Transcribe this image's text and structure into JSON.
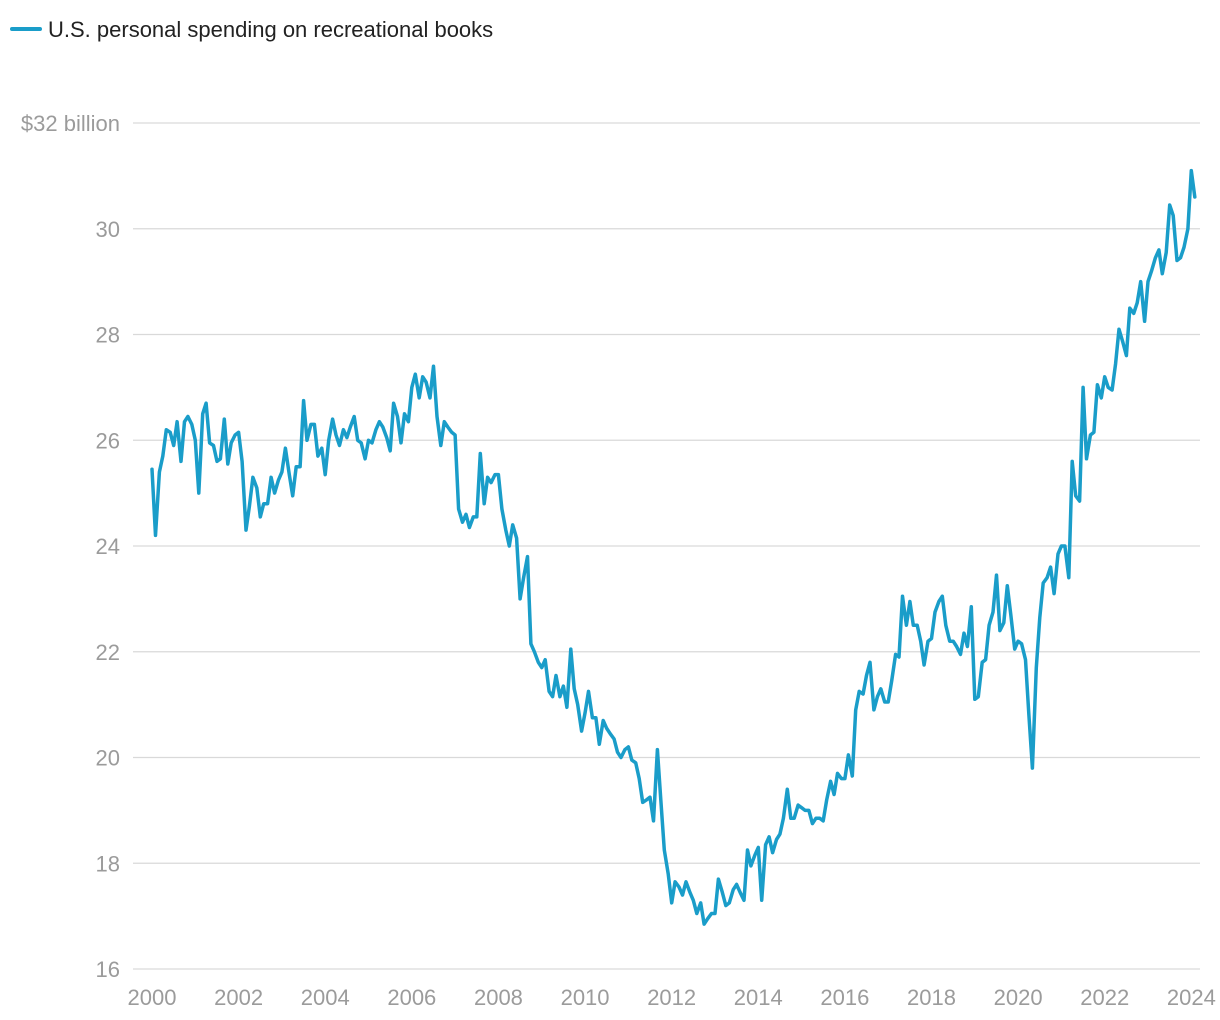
{
  "chart_data": {
    "type": "line",
    "title": "",
    "xlabel": "",
    "ylabel": "",
    "legend": {
      "position": "top-left",
      "entries": [
        "U.S. personal spending on recreational books"
      ]
    },
    "grid": true,
    "xlim": [
      2000,
      2024.2
    ],
    "ylim": [
      16,
      32
    ],
    "x_ticks": [
      2000,
      2002,
      2004,
      2006,
      2008,
      2010,
      2012,
      2014,
      2016,
      2018,
      2020,
      2022,
      2024
    ],
    "x_tick_labels": [
      "2000",
      "2002",
      "2004",
      "2006",
      "2008",
      "2010",
      "2012",
      "2014",
      "2016",
      "2018",
      "2020",
      "2022",
      "2024"
    ],
    "y_ticks": [
      16,
      18,
      20,
      22,
      24,
      26,
      28,
      30,
      32
    ],
    "y_tick_labels": [
      "16",
      "18",
      "20",
      "22",
      "24",
      "26",
      "28",
      "30",
      "$32 billion"
    ],
    "series": [
      {
        "name": "U.S. personal spending on recreational books",
        "color": "#1a9dc9",
        "points": [
          [
            2000.0,
            25.45
          ],
          [
            2000.08,
            24.2
          ],
          [
            2000.17,
            25.4
          ],
          [
            2000.25,
            25.7
          ],
          [
            2000.33,
            26.2
          ],
          [
            2000.42,
            26.15
          ],
          [
            2000.5,
            25.9
          ],
          [
            2000.58,
            26.35
          ],
          [
            2000.67,
            25.6
          ],
          [
            2000.75,
            26.35
          ],
          [
            2000.83,
            26.45
          ],
          [
            2000.92,
            26.3
          ],
          [
            2001.0,
            26.0
          ],
          [
            2001.08,
            25.0
          ],
          [
            2001.17,
            26.5
          ],
          [
            2001.25,
            26.7
          ],
          [
            2001.33,
            25.95
          ],
          [
            2001.42,
            25.9
          ],
          [
            2001.5,
            25.6
          ],
          [
            2001.58,
            25.65
          ],
          [
            2001.67,
            26.4
          ],
          [
            2001.75,
            25.55
          ],
          [
            2001.83,
            25.95
          ],
          [
            2001.92,
            26.1
          ],
          [
            2002.0,
            26.15
          ],
          [
            2002.08,
            25.6
          ],
          [
            2002.17,
            24.3
          ],
          [
            2002.25,
            24.75
          ],
          [
            2002.33,
            25.3
          ],
          [
            2002.42,
            25.1
          ],
          [
            2002.5,
            24.55
          ],
          [
            2002.58,
            24.8
          ],
          [
            2002.67,
            24.8
          ],
          [
            2002.75,
            25.3
          ],
          [
            2002.83,
            25.0
          ],
          [
            2002.92,
            25.25
          ],
          [
            2003.0,
            25.4
          ],
          [
            2003.08,
            25.85
          ],
          [
            2003.17,
            25.35
          ],
          [
            2003.25,
            24.95
          ],
          [
            2003.33,
            25.5
          ],
          [
            2003.42,
            25.5
          ],
          [
            2003.5,
            26.75
          ],
          [
            2003.58,
            26.0
          ],
          [
            2003.67,
            26.3
          ],
          [
            2003.75,
            26.3
          ],
          [
            2003.83,
            25.7
          ],
          [
            2003.92,
            25.85
          ],
          [
            2004.0,
            25.35
          ],
          [
            2004.08,
            26.0
          ],
          [
            2004.17,
            26.4
          ],
          [
            2004.25,
            26.1
          ],
          [
            2004.33,
            25.9
          ],
          [
            2004.42,
            26.2
          ],
          [
            2004.5,
            26.05
          ],
          [
            2004.58,
            26.25
          ],
          [
            2004.67,
            26.45
          ],
          [
            2004.75,
            26.0
          ],
          [
            2004.83,
            25.95
          ],
          [
            2004.92,
            25.65
          ],
          [
            2005.0,
            26.0
          ],
          [
            2005.08,
            25.95
          ],
          [
            2005.17,
            26.2
          ],
          [
            2005.25,
            26.35
          ],
          [
            2005.33,
            26.25
          ],
          [
            2005.42,
            26.05
          ],
          [
            2005.5,
            25.8
          ],
          [
            2005.58,
            26.7
          ],
          [
            2005.67,
            26.45
          ],
          [
            2005.75,
            25.95
          ],
          [
            2005.83,
            26.5
          ],
          [
            2005.92,
            26.35
          ],
          [
            2006.0,
            27.0
          ],
          [
            2006.08,
            27.25
          ],
          [
            2006.17,
            26.8
          ],
          [
            2006.25,
            27.2
          ],
          [
            2006.33,
            27.1
          ],
          [
            2006.42,
            26.8
          ],
          [
            2006.5,
            27.4
          ],
          [
            2006.58,
            26.45
          ],
          [
            2006.67,
            25.9
          ],
          [
            2006.75,
            26.35
          ],
          [
            2006.83,
            26.25
          ],
          [
            2006.92,
            26.15
          ],
          [
            2007.0,
            26.1
          ],
          [
            2007.08,
            24.7
          ],
          [
            2007.17,
            24.45
          ],
          [
            2007.25,
            24.6
          ],
          [
            2007.33,
            24.35
          ],
          [
            2007.42,
            24.55
          ],
          [
            2007.5,
            24.55
          ],
          [
            2007.58,
            25.75
          ],
          [
            2007.67,
            24.8
          ],
          [
            2007.75,
            25.3
          ],
          [
            2007.83,
            25.2
          ],
          [
            2007.92,
            25.35
          ],
          [
            2008.0,
            25.35
          ],
          [
            2008.08,
            24.7
          ],
          [
            2008.17,
            24.3
          ],
          [
            2008.25,
            24.0
          ],
          [
            2008.33,
            24.4
          ],
          [
            2008.42,
            24.15
          ],
          [
            2008.5,
            23.0
          ],
          [
            2008.58,
            23.4
          ],
          [
            2008.67,
            23.8
          ],
          [
            2008.75,
            22.15
          ],
          [
            2008.83,
            22.0
          ],
          [
            2008.92,
            21.8
          ],
          [
            2009.0,
            21.7
          ],
          [
            2009.08,
            21.85
          ],
          [
            2009.17,
            21.25
          ],
          [
            2009.25,
            21.15
          ],
          [
            2009.33,
            21.55
          ],
          [
            2009.42,
            21.15
          ],
          [
            2009.5,
            21.35
          ],
          [
            2009.58,
            20.95
          ],
          [
            2009.67,
            22.05
          ],
          [
            2009.75,
            21.3
          ],
          [
            2009.83,
            21.0
          ],
          [
            2009.92,
            20.5
          ],
          [
            2010.0,
            20.85
          ],
          [
            2010.08,
            21.25
          ],
          [
            2010.17,
            20.75
          ],
          [
            2010.25,
            20.75
          ],
          [
            2010.33,
            20.25
          ],
          [
            2010.42,
            20.7
          ],
          [
            2010.5,
            20.55
          ],
          [
            2010.58,
            20.45
          ],
          [
            2010.67,
            20.35
          ],
          [
            2010.75,
            20.1
          ],
          [
            2010.83,
            20.0
          ],
          [
            2010.92,
            20.15
          ],
          [
            2011.0,
            20.2
          ],
          [
            2011.08,
            19.95
          ],
          [
            2011.17,
            19.9
          ],
          [
            2011.25,
            19.6
          ],
          [
            2011.33,
            19.15
          ],
          [
            2011.42,
            19.2
          ],
          [
            2011.5,
            19.25
          ],
          [
            2011.58,
            18.8
          ],
          [
            2011.67,
            20.15
          ],
          [
            2011.75,
            19.2
          ],
          [
            2011.83,
            18.25
          ],
          [
            2011.92,
            17.8
          ],
          [
            2012.0,
            17.25
          ],
          [
            2012.08,
            17.65
          ],
          [
            2012.17,
            17.55
          ],
          [
            2012.25,
            17.4
          ],
          [
            2012.33,
            17.65
          ],
          [
            2012.42,
            17.45
          ],
          [
            2012.5,
            17.3
          ],
          [
            2012.58,
            17.05
          ],
          [
            2012.67,
            17.25
          ],
          [
            2012.75,
            16.85
          ],
          [
            2012.83,
            16.95
          ],
          [
            2012.92,
            17.05
          ],
          [
            2013.0,
            17.05
          ],
          [
            2013.08,
            17.7
          ],
          [
            2013.17,
            17.45
          ],
          [
            2013.25,
            17.2
          ],
          [
            2013.33,
            17.25
          ],
          [
            2013.42,
            17.5
          ],
          [
            2013.5,
            17.6
          ],
          [
            2013.58,
            17.45
          ],
          [
            2013.67,
            17.3
          ],
          [
            2013.75,
            18.25
          ],
          [
            2013.83,
            17.95
          ],
          [
            2013.92,
            18.15
          ],
          [
            2014.0,
            18.3
          ],
          [
            2014.08,
            17.3
          ],
          [
            2014.17,
            18.35
          ],
          [
            2014.25,
            18.5
          ],
          [
            2014.33,
            18.2
          ],
          [
            2014.42,
            18.45
          ],
          [
            2014.5,
            18.55
          ],
          [
            2014.58,
            18.85
          ],
          [
            2014.67,
            19.4
          ],
          [
            2014.75,
            18.85
          ],
          [
            2014.83,
            18.85
          ],
          [
            2014.92,
            19.1
          ],
          [
            2015.0,
            19.05
          ],
          [
            2015.08,
            19.0
          ],
          [
            2015.17,
            19.0
          ],
          [
            2015.25,
            18.75
          ],
          [
            2015.33,
            18.85
          ],
          [
            2015.42,
            18.85
          ],
          [
            2015.5,
            18.8
          ],
          [
            2015.58,
            19.2
          ],
          [
            2015.67,
            19.55
          ],
          [
            2015.75,
            19.3
          ],
          [
            2015.83,
            19.7
          ],
          [
            2015.92,
            19.6
          ],
          [
            2016.0,
            19.6
          ],
          [
            2016.08,
            20.05
          ],
          [
            2016.17,
            19.65
          ],
          [
            2016.25,
            20.9
          ],
          [
            2016.33,
            21.25
          ],
          [
            2016.42,
            21.2
          ],
          [
            2016.5,
            21.55
          ],
          [
            2016.58,
            21.8
          ],
          [
            2016.67,
            20.9
          ],
          [
            2016.75,
            21.15
          ],
          [
            2016.83,
            21.3
          ],
          [
            2016.92,
            21.05
          ],
          [
            2017.0,
            21.05
          ],
          [
            2017.08,
            21.45
          ],
          [
            2017.17,
            21.95
          ],
          [
            2017.25,
            21.9
          ],
          [
            2017.33,
            23.05
          ],
          [
            2017.42,
            22.5
          ],
          [
            2017.5,
            22.95
          ],
          [
            2017.58,
            22.5
          ],
          [
            2017.67,
            22.5
          ],
          [
            2017.75,
            22.2
          ],
          [
            2017.83,
            21.75
          ],
          [
            2017.92,
            22.2
          ],
          [
            2018.0,
            22.25
          ],
          [
            2018.08,
            22.75
          ],
          [
            2018.17,
            22.95
          ],
          [
            2018.25,
            23.05
          ],
          [
            2018.33,
            22.5
          ],
          [
            2018.42,
            22.2
          ],
          [
            2018.5,
            22.2
          ],
          [
            2018.58,
            22.1
          ],
          [
            2018.67,
            21.95
          ],
          [
            2018.75,
            22.35
          ],
          [
            2018.83,
            22.1
          ],
          [
            2018.92,
            22.85
          ],
          [
            2019.0,
            21.1
          ],
          [
            2019.08,
            21.15
          ],
          [
            2019.17,
            21.8
          ],
          [
            2019.25,
            21.85
          ],
          [
            2019.33,
            22.5
          ],
          [
            2019.42,
            22.75
          ],
          [
            2019.5,
            23.45
          ],
          [
            2019.58,
            22.4
          ],
          [
            2019.67,
            22.55
          ],
          [
            2019.75,
            23.25
          ],
          [
            2019.83,
            22.7
          ],
          [
            2019.92,
            22.05
          ],
          [
            2020.0,
            22.2
          ],
          [
            2020.08,
            22.15
          ],
          [
            2020.17,
            21.85
          ],
          [
            2020.25,
            20.8
          ],
          [
            2020.33,
            19.8
          ],
          [
            2020.42,
            21.7
          ],
          [
            2020.5,
            22.65
          ],
          [
            2020.58,
            23.3
          ],
          [
            2020.67,
            23.4
          ],
          [
            2020.75,
            23.6
          ],
          [
            2020.83,
            23.1
          ],
          [
            2020.92,
            23.85
          ],
          [
            2021.0,
            24.0
          ],
          [
            2021.08,
            24.0
          ],
          [
            2021.17,
            23.4
          ],
          [
            2021.25,
            25.6
          ],
          [
            2021.33,
            24.95
          ],
          [
            2021.42,
            24.85
          ],
          [
            2021.5,
            27.0
          ],
          [
            2021.58,
            25.65
          ],
          [
            2021.67,
            26.1
          ],
          [
            2021.75,
            26.15
          ],
          [
            2021.83,
            27.05
          ],
          [
            2021.92,
            26.8
          ],
          [
            2022.0,
            27.2
          ],
          [
            2022.08,
            27.0
          ],
          [
            2022.17,
            26.95
          ],
          [
            2022.25,
            27.45
          ],
          [
            2022.33,
            28.1
          ],
          [
            2022.42,
            27.85
          ],
          [
            2022.5,
            27.6
          ],
          [
            2022.58,
            28.5
          ],
          [
            2022.67,
            28.4
          ],
          [
            2022.75,
            28.6
          ],
          [
            2022.83,
            29.0
          ],
          [
            2022.92,
            28.25
          ],
          [
            2023.0,
            29.0
          ],
          [
            2023.08,
            29.2
          ],
          [
            2023.17,
            29.45
          ],
          [
            2023.25,
            29.6
          ],
          [
            2023.33,
            29.15
          ],
          [
            2023.42,
            29.55
          ],
          [
            2023.5,
            30.45
          ],
          [
            2023.58,
            30.25
          ],
          [
            2023.67,
            29.4
          ],
          [
            2023.75,
            29.45
          ],
          [
            2023.83,
            29.65
          ],
          [
            2023.92,
            30.0
          ],
          [
            2024.0,
            31.1
          ],
          [
            2024.08,
            30.6
          ]
        ]
      }
    ]
  }
}
